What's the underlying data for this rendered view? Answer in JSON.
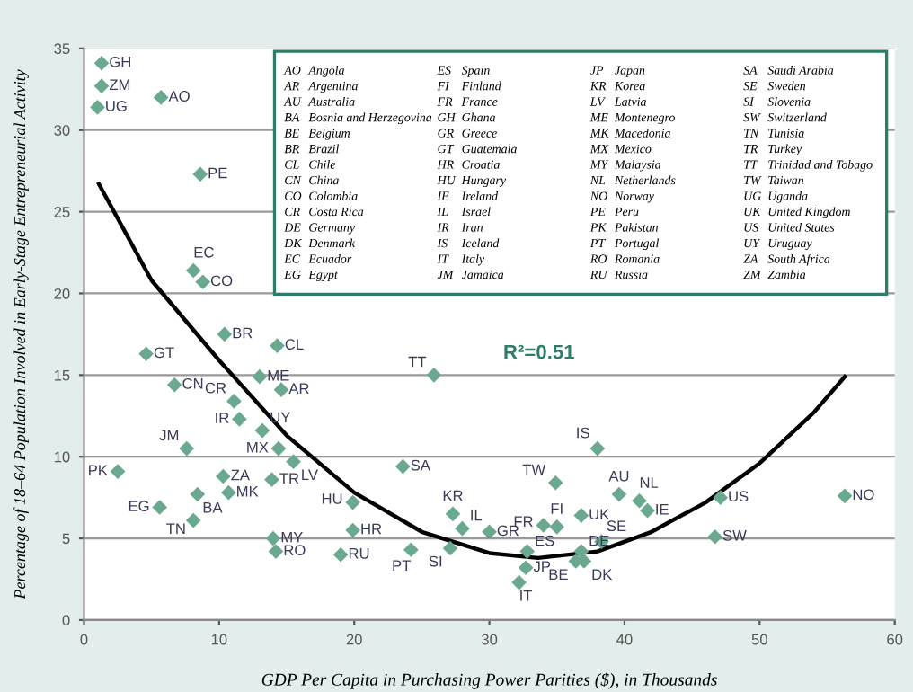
{
  "chart_data": {
    "type": "scatter",
    "xlabel": "GDP Per Capita in Purchasing Power Parities ($), in Thousands",
    "ylabel": "Percentage of 18–64 Population Involved in Early-Stage Entrepreneurial Activity",
    "xlim": [
      0,
      60
    ],
    "xticks": [
      0,
      10,
      20,
      30,
      40,
      50,
      60
    ],
    "ylim": [
      0,
      35
    ],
    "yticks": [
      0,
      5,
      10,
      15,
      20,
      25,
      30,
      35
    ],
    "grid": "y",
    "legend": false,
    "marker": "diamond",
    "annotations": [
      "R²=0.51",
      "AO Angola",
      "AR Argentina",
      "AU Australia",
      "BA Bosnia and Herzegovina",
      "BE Belgium",
      "BR Brazil",
      "CL Chile",
      "CN China",
      "CO Colombia",
      "CR Costa Rica",
      "DE Germany",
      "DK Denmark",
      "EC Ecuador",
      "EG Egypt",
      "ES Spain",
      "FI Finland",
      "FR France",
      "GH Ghana",
      "GR Greece",
      "GT Guatemala",
      "HR Croatia",
      "HU Hungary",
      "IE Ireland",
      "IL Israel",
      "IR Iran",
      "IS Iceland",
      "IT Italy",
      "JM Jamaica",
      "JP Japan",
      "KR Korea",
      "LV Latvia",
      "ME Montenegro",
      "MK Macedonia",
      "MX Mexico",
      "MY Malaysia",
      "NL Netherlands",
      "NO Norway",
      "PE Peru",
      "PK Pakistan",
      "PT Portugal",
      "RO Romania",
      "RU Russia",
      "SA Saudi Arabia",
      "SE Sweden",
      "SI Slovenia",
      "SW Switzerland",
      "TN Tunisia",
      "TR Turkey",
      "TT Trinidad and Tobago",
      "TW Taiwan",
      "UG Uganda",
      "UK United Kingdom",
      "US United States",
      "UY Uruguay",
      "ZA South Africa",
      "ZM Zambia"
    ],
    "series": [
      {
        "type": "line",
        "color": "#000000",
        "marker": "none",
        "x": [
          1.1,
          5,
          10,
          15,
          20,
          25,
          30,
          33.6,
          38,
          42,
          46,
          50,
          54,
          56.3
        ],
        "values": [
          26.7,
          20.8,
          15.9,
          11.3,
          7.8,
          5.4,
          4.1,
          3.8,
          4.2,
          5.4,
          7.2,
          9.6,
          12.7,
          14.9
        ]
      },
      {
        "name": "GH",
        "color": "#6aa88f",
        "x": [
          1.3
        ],
        "values": [
          34.1
        ]
      },
      {
        "name": "ZM",
        "color": "#6aa88f",
        "x": [
          1.3
        ],
        "values": [
          32.7
        ]
      },
      {
        "name": "UG",
        "color": "#6aa88f",
        "x": [
          1.0
        ],
        "values": [
          31.4
        ]
      },
      {
        "name": "AO",
        "color": "#6aa88f",
        "x": [
          5.7
        ],
        "values": [
          32.0
        ]
      },
      {
        "name": "PE",
        "color": "#6aa88f",
        "x": [
          8.6
        ],
        "values": [
          27.3
        ]
      },
      {
        "name": "EC",
        "color": "#6aa88f",
        "x": [
          8.1
        ],
        "values": [
          21.4
        ]
      },
      {
        "name": "CO",
        "color": "#6aa88f",
        "x": [
          8.8
        ],
        "values": [
          20.7
        ]
      },
      {
        "name": "BR",
        "color": "#6aa88f",
        "x": [
          10.4
        ],
        "values": [
          17.5
        ]
      },
      {
        "name": "CL",
        "color": "#6aa88f",
        "x": [
          14.3
        ],
        "values": [
          16.8
        ]
      },
      {
        "name": "GT",
        "color": "#6aa88f",
        "x": [
          4.6
        ],
        "values": [
          16.3
        ]
      },
      {
        "name": "CN",
        "color": "#6aa88f",
        "x": [
          6.7
        ],
        "values": [
          14.4
        ]
      },
      {
        "name": "ME",
        "color": "#6aa88f",
        "x": [
          13.0
        ],
        "values": [
          14.9
        ]
      },
      {
        "name": "AR",
        "color": "#6aa88f",
        "x": [
          14.6
        ],
        "values": [
          14.1
        ]
      },
      {
        "name": "CR",
        "color": "#6aa88f",
        "x": [
          11.1
        ],
        "values": [
          13.4
        ]
      },
      {
        "name": "IR",
        "color": "#6aa88f",
        "x": [
          11.5
        ],
        "values": [
          12.3
        ]
      },
      {
        "name": "UY",
        "color": "#6aa88f",
        "x": [
          13.2
        ],
        "values": [
          11.6
        ]
      },
      {
        "name": "JM",
        "color": "#6aa88f",
        "x": [
          7.6
        ],
        "values": [
          10.5
        ]
      },
      {
        "name": "MX",
        "color": "#6aa88f",
        "x": [
          14.4
        ],
        "values": [
          10.5
        ]
      },
      {
        "name": "LV",
        "color": "#6aa88f",
        "x": [
          15.5
        ],
        "values": [
          9.7
        ]
      },
      {
        "name": "PK",
        "color": "#6aa88f",
        "x": [
          2.5
        ],
        "values": [
          9.1
        ]
      },
      {
        "name": "ZA",
        "color": "#6aa88f",
        "x": [
          10.3
        ],
        "values": [
          8.8
        ]
      },
      {
        "name": "TR",
        "color": "#6aa88f",
        "x": [
          13.9
        ],
        "values": [
          8.6
        ]
      },
      {
        "name": "BA",
        "color": "#6aa88f",
        "x": [
          8.4
        ],
        "values": [
          7.7
        ]
      },
      {
        "name": "MK",
        "color": "#6aa88f",
        "x": [
          10.7
        ],
        "values": [
          7.8
        ]
      },
      {
        "name": "EG",
        "color": "#6aa88f",
        "x": [
          5.6
        ],
        "values": [
          6.9
        ]
      },
      {
        "name": "HU",
        "color": "#6aa88f",
        "x": [
          19.9
        ],
        "values": [
          7.2
        ]
      },
      {
        "name": "TN",
        "color": "#6aa88f",
        "x": [
          8.1
        ],
        "values": [
          6.1
        ]
      },
      {
        "name": "MY",
        "color": "#6aa88f",
        "x": [
          14.0
        ],
        "values": [
          5.0
        ]
      },
      {
        "name": "RO",
        "color": "#6aa88f",
        "x": [
          14.2
        ],
        "values": [
          4.2
        ]
      },
      {
        "name": "HR",
        "color": "#6aa88f",
        "x": [
          19.9
        ],
        "values": [
          5.5
        ]
      },
      {
        "name": "RU",
        "color": "#6aa88f",
        "x": [
          19.0
        ],
        "values": [
          4.0
        ]
      },
      {
        "name": "PT",
        "color": "#6aa88f",
        "x": [
          24.2
        ],
        "values": [
          4.3
        ]
      },
      {
        "name": "SA",
        "color": "#6aa88f",
        "x": [
          23.6
        ],
        "values": [
          9.4
        ]
      },
      {
        "name": "TT",
        "color": "#6aa88f",
        "x": [
          25.9
        ],
        "values": [
          15.0
        ]
      },
      {
        "name": "SI",
        "color": "#6aa88f",
        "x": [
          27.1
        ],
        "values": [
          4.4
        ]
      },
      {
        "name": "KR",
        "color": "#6aa88f",
        "x": [
          27.3
        ],
        "values": [
          6.5
        ]
      },
      {
        "name": "IL",
        "color": "#6aa88f",
        "x": [
          28.0
        ],
        "values": [
          5.6
        ]
      },
      {
        "name": "GR",
        "color": "#6aa88f",
        "x": [
          30.0
        ],
        "values": [
          5.4
        ]
      },
      {
        "name": "FR",
        "color": "#6aa88f",
        "x": [
          34.0
        ],
        "values": [
          5.8
        ]
      },
      {
        "name": "FI",
        "color": "#6aa88f",
        "x": [
          35.0
        ],
        "values": [
          5.7
        ]
      },
      {
        "name": "UK",
        "color": "#6aa88f",
        "x": [
          36.8
        ],
        "values": [
          6.4
        ]
      },
      {
        "name": "TW",
        "color": "#6aa88f",
        "x": [
          34.9
        ],
        "values": [
          8.4
        ]
      },
      {
        "name": "IS",
        "color": "#6aa88f",
        "x": [
          38.0
        ],
        "values": [
          10.5
        ]
      },
      {
        "name": "AU",
        "color": "#6aa88f",
        "x": [
          39.6
        ],
        "values": [
          7.7
        ]
      },
      {
        "name": "NL",
        "color": "#6aa88f",
        "x": [
          41.1
        ],
        "values": [
          7.3
        ]
      },
      {
        "name": "IE",
        "color": "#6aa88f",
        "x": [
          41.7
        ],
        "values": [
          6.7
        ]
      },
      {
        "name": "SE",
        "color": "#6aa88f",
        "x": [
          38.3
        ],
        "values": [
          4.8
        ]
      },
      {
        "name": "ES",
        "color": "#6aa88f",
        "x": [
          32.8
        ],
        "values": [
          4.2
        ]
      },
      {
        "name": "DE",
        "color": "#6aa88f",
        "x": [
          36.8
        ],
        "values": [
          4.2
        ]
      },
      {
        "name": "JP",
        "color": "#6aa88f",
        "x": [
          32.7
        ],
        "values": [
          3.2
        ]
      },
      {
        "name": "BE",
        "color": "#6aa88f",
        "x": [
          36.4
        ],
        "values": [
          3.6
        ]
      },
      {
        "name": "DK",
        "color": "#6aa88f",
        "x": [
          37.0
        ],
        "values": [
          3.6
        ]
      },
      {
        "name": "IT",
        "color": "#6aa88f",
        "x": [
          32.2
        ],
        "values": [
          2.3
        ]
      },
      {
        "name": "US",
        "color": "#6aa88f",
        "x": [
          47.1
        ],
        "values": [
          7.5
        ]
      },
      {
        "name": "SW",
        "color": "#6aa88f",
        "x": [
          46.7
        ],
        "values": [
          5.1
        ]
      },
      {
        "name": "NO",
        "color": "#6aa88f",
        "x": [
          56.3
        ],
        "values": [
          7.6
        ]
      }
    ]
  }
}
